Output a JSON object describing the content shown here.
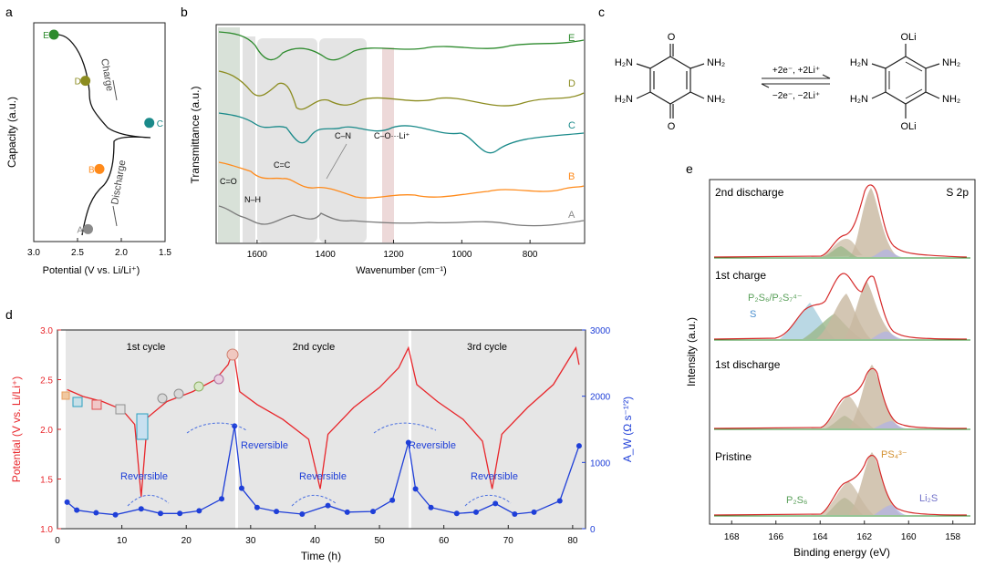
{
  "panels": {
    "a": "a",
    "b": "b",
    "c": "c",
    "d": "d",
    "e": "e"
  },
  "colors": {
    "E": "#2e8b2e",
    "D": "#8c8c20",
    "C": "#1a8a8a",
    "B": "#ff8a1a",
    "A": "#8a8a8a",
    "potential": "#e8262b",
    "impedance": "#1f3fd8",
    "shade": "#e6e6e6",
    "xps_fit": "#d62b2b"
  },
  "chart_data": [
    {
      "type": "line",
      "panel": "a",
      "xlabel": "Potential (V vs. Li/Li⁺)",
      "ylabel": "Capacity (a.u.)",
      "x_ticks": [
        "3.0",
        "2.5",
        "2.0",
        "1.5"
      ],
      "xlim": [
        3.0,
        1.5
      ],
      "points": [
        {
          "label": "A",
          "potential": 2.38,
          "capacity": 0.03
        },
        {
          "label": "B",
          "potential": 2.25,
          "capacity": 0.33
        },
        {
          "label": "C",
          "potential": 1.68,
          "capacity": 0.56
        },
        {
          "label": "D",
          "potential": 2.41,
          "capacity": 0.77
        },
        {
          "label": "E",
          "potential": 2.77,
          "capacity": 1.0
        }
      ],
      "annotations": [
        "Discharge",
        "Charge"
      ]
    },
    {
      "type": "line",
      "panel": "b",
      "xlabel": "Wavenumber (cm⁻¹)",
      "ylabel": "Transmittance (a.u.)",
      "x_ticks": [
        "1600",
        "1400",
        "1200",
        "1000",
        "800"
      ],
      "xlim": [
        1720,
        640
      ],
      "series": [
        {
          "name": "E"
        },
        {
          "name": "D"
        },
        {
          "name": "C"
        },
        {
          "name": "B"
        },
        {
          "name": "A"
        }
      ],
      "annotations": [
        "C=O",
        "N–H",
        "C=C",
        "C–N",
        "C–O···Li⁺"
      ]
    },
    {
      "type": "line",
      "panel": "d",
      "xlabel": "Time (h)",
      "ylabel_left": "Potential (V vs. Li/Li⁺)",
      "ylabel_right": "A_W (Ω s⁻¹′²)",
      "xlim": [
        0,
        82
      ],
      "ylim_left": [
        1.0,
        3.0
      ],
      "ylim_right": [
        0,
        3000
      ],
      "x_ticks": [
        "0",
        "10",
        "20",
        "30",
        "40",
        "50",
        "60",
        "70",
        "80"
      ],
      "y_ticks_left": [
        "1.0",
        "1.5",
        "2.0",
        "2.5",
        "3.0"
      ],
      "y_ticks_right": [
        "0",
        "1000",
        "2000",
        "3000"
      ],
      "cycles": [
        "1st cycle",
        "2nd cycle",
        "3rd cycle"
      ],
      "reversible_labels": [
        "Reversible",
        "Reversible",
        "Reversible",
        "Reversible",
        "Reversible"
      ],
      "potential_series": [
        {
          "t": 1.5,
          "v": 2.4
        },
        {
          "t": 4,
          "v": 2.33
        },
        {
          "t": 7,
          "v": 2.28
        },
        {
          "t": 10,
          "v": 2.2
        },
        {
          "t": 12,
          "v": 2.05
        },
        {
          "t": 13,
          "v": 1.32
        },
        {
          "t": 14,
          "v": 2.12
        },
        {
          "t": 17,
          "v": 2.28
        },
        {
          "t": 21,
          "v": 2.38
        },
        {
          "t": 24.5,
          "v": 2.5
        },
        {
          "t": 26.5,
          "v": 2.65
        },
        {
          "t": 27.3,
          "v": 2.8
        },
        {
          "t": 28.3,
          "v": 2.38
        },
        {
          "t": 31,
          "v": 2.25
        },
        {
          "t": 35,
          "v": 2.1
        },
        {
          "t": 39,
          "v": 1.9
        },
        {
          "t": 40.8,
          "v": 1.4
        },
        {
          "t": 42,
          "v": 1.95
        },
        {
          "t": 46,
          "v": 2.22
        },
        {
          "t": 50,
          "v": 2.42
        },
        {
          "t": 53,
          "v": 2.62
        },
        {
          "t": 54.5,
          "v": 2.82
        },
        {
          "t": 55.8,
          "v": 2.45
        },
        {
          "t": 59,
          "v": 2.28
        },
        {
          "t": 63,
          "v": 2.1
        },
        {
          "t": 66,
          "v": 1.88
        },
        {
          "t": 67.5,
          "v": 1.4
        },
        {
          "t": 69,
          "v": 1.95
        },
        {
          "t": 73,
          "v": 2.22
        },
        {
          "t": 77,
          "v": 2.45
        },
        {
          "t": 80.5,
          "v": 2.82
        },
        {
          "t": 81,
          "v": 2.65
        }
      ],
      "impedance_series": [
        {
          "t": 1.5,
          "a": 400
        },
        {
          "t": 3,
          "a": 280
        },
        {
          "t": 6,
          "a": 240
        },
        {
          "t": 9,
          "a": 210
        },
        {
          "t": 13,
          "a": 300
        },
        {
          "t": 16,
          "a": 230
        },
        {
          "t": 19,
          "a": 230
        },
        {
          "t": 22,
          "a": 270
        },
        {
          "t": 25.5,
          "a": 450
        },
        {
          "t": 27.5,
          "a": 1550
        },
        {
          "t": 28.6,
          "a": 610
        },
        {
          "t": 31,
          "a": 320
        },
        {
          "t": 34,
          "a": 260
        },
        {
          "t": 38,
          "a": 220
        },
        {
          "t": 42,
          "a": 350
        },
        {
          "t": 45,
          "a": 250
        },
        {
          "t": 49,
          "a": 260
        },
        {
          "t": 52,
          "a": 430
        },
        {
          "t": 54.5,
          "a": 1300
        },
        {
          "t": 55.6,
          "a": 600
        },
        {
          "t": 58,
          "a": 320
        },
        {
          "t": 62,
          "a": 230
        },
        {
          "t": 65,
          "a": 250
        },
        {
          "t": 68,
          "a": 380
        },
        {
          "t": 71,
          "a": 220
        },
        {
          "t": 74,
          "a": 250
        },
        {
          "t": 78,
          "a": 420
        },
        {
          "t": 81,
          "a": 1250
        }
      ]
    },
    {
      "type": "line",
      "panel": "e",
      "xlabel": "Binding energy (eV)",
      "ylabel": "Intensity (a.u.)",
      "xlim": [
        169,
        157
      ],
      "x_ticks": [
        "168",
        "166",
        "164",
        "162",
        "160",
        "158"
      ],
      "spectra": [
        "2nd discharge",
        "1st charge",
        "1st discharge",
        "Pristine"
      ],
      "corner_label": "S 2p",
      "components": [
        "P₂S₆/P₂S₇⁴⁻",
        "S",
        "PS₄³⁻",
        "P₂S₆",
        "Li₂S"
      ]
    }
  ],
  "scheme": {
    "reactant": {
      "groups": [
        "H₂N",
        "NH₂",
        "H₂N",
        "NH₂",
        "O",
        "O"
      ]
    },
    "product": {
      "groups": [
        "H₂N",
        "NH₂",
        "H₂N",
        "NH₂",
        "OLi",
        "OLi"
      ]
    },
    "forward": "+2e⁻, +2Li⁺",
    "reverse": "−2e⁻, −2Li⁺"
  }
}
